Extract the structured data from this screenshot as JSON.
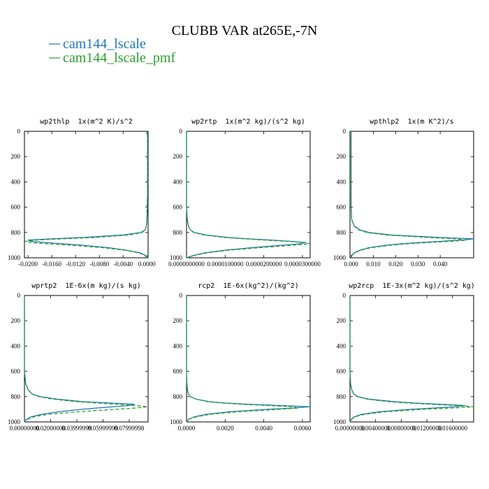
{
  "title": "CLUBB VAR at265E,-7N",
  "chart_data": [
    {
      "type": "line",
      "orientation": "vertical",
      "title": "wp2thlp  1x(m^2 K)/s^2",
      "y": [
        0,
        100,
        200,
        300,
        400,
        500,
        600,
        700,
        750,
        780,
        800,
        820,
        840,
        850,
        860,
        870,
        880,
        890,
        900,
        920,
        940,
        960,
        980,
        1000
      ],
      "ylim": [
        1000,
        0
      ],
      "yticks": [
        0,
        200,
        400,
        600,
        800,
        1000
      ],
      "xlim": [
        -0.0206,
        0.0002
      ],
      "xticks": [
        {
          "value": -0.02,
          "label": "-0.0200"
        },
        {
          "value": -0.016,
          "label": "-0.0160"
        },
        {
          "value": -0.012,
          "label": "-0.0120"
        },
        {
          "value": -0.008,
          "label": "-0.0080"
        },
        {
          "value": -0.004,
          "label": "-0.0040"
        },
        {
          "value": 0,
          "label": "0.0000"
        }
      ],
      "series": [
        {
          "name": "cam144_lscale",
          "color": "#1f77b4",
          "linestyle": "solid",
          "values": [
            0.0001,
            0.0001,
            0.0001,
            0.0001,
            0.0001,
            0.0001,
            0.0001,
            0.0,
            -0.0001,
            -0.0003,
            -0.001,
            -0.004,
            -0.011,
            -0.016,
            -0.02,
            -0.0195,
            -0.017,
            -0.014,
            -0.011,
            -0.0065,
            -0.0035,
            -0.0012,
            -0.0003,
            0.0
          ]
        },
        {
          "name": "cam144_lscale_pmf",
          "color": "#2ca02c",
          "linestyle": "dashed",
          "values": [
            0.0001,
            0.0001,
            0.0001,
            0.0001,
            0.0001,
            0.0001,
            0.0,
            0.0,
            -0.0001,
            -0.0003,
            -0.0008,
            -0.003,
            -0.009,
            -0.014,
            -0.0185,
            -0.0205,
            -0.0195,
            -0.0165,
            -0.013,
            -0.0075,
            -0.0038,
            -0.0014,
            -0.0004,
            0.0
          ]
        }
      ]
    },
    {
      "type": "line",
      "orientation": "vertical",
      "title": "wp2rtp  1x(m^2 kg)/(s^2 kg)",
      "y": [
        0,
        100,
        200,
        300,
        400,
        500,
        600,
        700,
        750,
        780,
        800,
        820,
        840,
        850,
        860,
        870,
        880,
        890,
        900,
        920,
        940,
        960,
        980,
        1000
      ],
      "ylim": [
        1000,
        0
      ],
      "yticks": [
        0,
        200,
        400,
        600,
        800,
        1000
      ],
      "xlim": [
        0,
        3.2e-05
      ],
      "xticks": [
        {
          "value": 0,
          "label": "0.0000000000"
        },
        {
          "value": 1e-05,
          "label": "0.0000100000"
        },
        {
          "value": 2e-05,
          "label": "0.0000200000"
        },
        {
          "value": 3e-05,
          "label": "0.0000300000"
        }
      ],
      "series": [
        {
          "name": "cam144_lscale",
          "color": "#1f77b4",
          "linestyle": "solid",
          "values": [
            0,
            0,
            0,
            0,
            0,
            0,
            0,
            2e-07,
            5e-07,
            1e-06,
            2e-06,
            5e-06,
            1.1e-05,
            1.6e-05,
            2.2e-05,
            2.7e-05,
            3.1e-05,
            2.9e-05,
            2.5e-05,
            1.7e-05,
            1e-05,
            5e-06,
            2e-06,
            0
          ]
        },
        {
          "name": "cam144_lscale_pmf",
          "color": "#2ca02c",
          "linestyle": "dashed",
          "values": [
            0,
            0,
            0,
            0,
            0,
            0,
            0,
            2e-07,
            5e-07,
            1e-06,
            1.8e-06,
            4.5e-06,
            1e-05,
            1.5e-05,
            2e-05,
            2.6e-05,
            3.1e-05,
            3.2e-05,
            2.8e-05,
            1.9e-05,
            1.1e-05,
            5.5e-06,
            2.2e-06,
            0
          ]
        }
      ]
    },
    {
      "type": "line",
      "orientation": "vertical",
      "title": "wpthlp2  1x(m K^2)/s",
      "y": [
        0,
        100,
        200,
        300,
        400,
        500,
        600,
        700,
        750,
        780,
        800,
        820,
        840,
        850,
        860,
        870,
        880,
        890,
        900,
        920,
        940,
        960,
        980,
        1000
      ],
      "ylim": [
        1000,
        0
      ],
      "yticks": [
        0,
        200,
        400,
        600,
        800,
        1000
      ],
      "xlim": [
        -0.0005,
        0.055
      ],
      "xticks": [
        {
          "value": 0,
          "label": "0.000"
        },
        {
          "value": 0.01,
          "label": "0.010"
        },
        {
          "value": 0.02,
          "label": "0.020"
        },
        {
          "value": 0.03,
          "label": "0.030"
        },
        {
          "value": 0.04,
          "label": "0.040"
        }
      ],
      "series": [
        {
          "name": "cam144_lscale",
          "color": "#1f77b4",
          "linestyle": "solid",
          "values": [
            0,
            0,
            0,
            0,
            0,
            0,
            0,
            0.0003,
            0.0015,
            0.004,
            0.008,
            0.018,
            0.04,
            0.055,
            0.05,
            0.04,
            0.03,
            0.022,
            0.016,
            0.008,
            0.004,
            0.0015,
            0.0004,
            0
          ]
        },
        {
          "name": "cam144_lscale_pmf",
          "color": "#2ca02c",
          "linestyle": "dashed",
          "values": [
            0,
            0,
            0,
            0,
            0,
            0,
            0,
            0.0003,
            0.0014,
            0.0035,
            0.007,
            0.016,
            0.035,
            0.047,
            0.052,
            0.045,
            0.034,
            0.025,
            0.018,
            0.009,
            0.0045,
            0.0017,
            0.0005,
            0
          ]
        }
      ]
    },
    {
      "type": "line",
      "orientation": "vertical",
      "title": "wprtp2  1E-6x(m kg)/(s kg)",
      "y": [
        0,
        100,
        200,
        300,
        400,
        500,
        600,
        700,
        750,
        780,
        800,
        820,
        840,
        850,
        860,
        870,
        880,
        890,
        900,
        920,
        940,
        960,
        980,
        1000
      ],
      "ylim": [
        1000,
        0
      ],
      "yticks": [
        0,
        200,
        400,
        600,
        800,
        1000
      ],
      "xlim": [
        0,
        0.0944
      ],
      "xticks": [
        {
          "value": 0,
          "label": "0.00000000"
        },
        {
          "value": 0.02,
          "label": "0.02000000"
        },
        {
          "value": 0.04,
          "label": "0.03999999"
        },
        {
          "value": 0.06,
          "label": "0.05999999"
        },
        {
          "value": 0.08,
          "label": "0.07999998"
        }
      ],
      "series": [
        {
          "name": "cam144_lscale",
          "color": "#1f77b4",
          "linestyle": "solid",
          "values": [
            0,
            0,
            0,
            0,
            0,
            0,
            0,
            0.001,
            0.003,
            0.006,
            0.012,
            0.025,
            0.045,
            0.065,
            0.084,
            0.08,
            0.068,
            0.055,
            0.044,
            0.026,
            0.013,
            0.005,
            0.0015,
            0
          ]
        },
        {
          "name": "cam144_lscale_pmf",
          "color": "#2ca02c",
          "linestyle": "dashed",
          "values": [
            0,
            0,
            0,
            0,
            0,
            0,
            0,
            0.001,
            0.003,
            0.006,
            0.011,
            0.022,
            0.04,
            0.055,
            0.07,
            0.085,
            0.094,
            0.085,
            0.07,
            0.04,
            0.018,
            0.007,
            0.002,
            0
          ]
        }
      ]
    },
    {
      "type": "line",
      "orientation": "vertical",
      "title": "rcp2  1E-6x(kg^2)/(kg^2)",
      "y": [
        0,
        100,
        200,
        300,
        400,
        500,
        600,
        700,
        750,
        780,
        800,
        820,
        840,
        850,
        860,
        870,
        880,
        890,
        900,
        920,
        940,
        960,
        980,
        1000
      ],
      "ylim": [
        1000,
        0
      ],
      "yticks": [
        0,
        200,
        400,
        600,
        800,
        1000
      ],
      "xlim": [
        0,
        0.0064
      ],
      "xticks": [
        {
          "value": 0,
          "label": "0.0000"
        },
        {
          "value": 0.002,
          "label": "0.0020"
        },
        {
          "value": 0.004,
          "label": "0.0040"
        },
        {
          "value": 0.006,
          "label": "0.0060"
        }
      ],
      "series": [
        {
          "name": "cam144_lscale",
          "color": "#1f77b4",
          "linestyle": "solid",
          "values": [
            0,
            0,
            0,
            0,
            0,
            0,
            0,
            2e-05,
            5e-05,
            0.0001,
            0.0002,
            0.0005,
            0.0012,
            0.002,
            0.0032,
            0.0048,
            0.0064,
            0.0055,
            0.0042,
            0.0022,
            0.001,
            0.0004,
            0.0001,
            0
          ]
        },
        {
          "name": "cam144_lscale_pmf",
          "color": "#2ca02c",
          "linestyle": "dashed",
          "values": [
            0,
            0,
            0,
            0,
            0,
            0,
            0,
            2e-05,
            5e-05,
            0.0001,
            0.0002,
            0.0005,
            0.0011,
            0.0018,
            0.0028,
            0.0042,
            0.0055,
            0.0058,
            0.0048,
            0.0026,
            0.0012,
            0.0005,
            0.0001,
            0
          ]
        }
      ]
    },
    {
      "type": "line",
      "orientation": "vertical",
      "title": "wp2rcp  1E-3x(m^2 kg)/(s^2 kg)",
      "y": [
        0,
        100,
        200,
        300,
        400,
        500,
        600,
        700,
        750,
        780,
        800,
        820,
        840,
        850,
        860,
        870,
        880,
        890,
        900,
        920,
        940,
        960,
        980,
        1000
      ],
      "ylim": [
        1000,
        0
      ],
      "yticks": [
        0,
        200,
        400,
        600,
        800,
        1000
      ],
      "xlim": [
        0,
        0.0193
      ],
      "xticks": [
        {
          "value": 0,
          "label": "0.00000000"
        },
        {
          "value": 0.004,
          "label": "0.00400000"
        },
        {
          "value": 0.008,
          "label": "0.00800000"
        },
        {
          "value": 0.012,
          "label": "0.01200000"
        },
        {
          "value": 0.016,
          "label": "0.01600000"
        }
      ],
      "series": [
        {
          "name": "cam144_lscale",
          "color": "#1f77b4",
          "linestyle": "solid",
          "values": [
            0,
            0,
            0,
            0,
            0,
            0,
            0,
            0.0001,
            0.0003,
            0.0006,
            0.0012,
            0.003,
            0.007,
            0.01,
            0.014,
            0.018,
            0.0165,
            0.013,
            0.0095,
            0.0045,
            0.0018,
            0.0006,
            0.0002,
            0
          ]
        },
        {
          "name": "cam144_lscale_pmf",
          "color": "#2ca02c",
          "linestyle": "dashed",
          "values": [
            0,
            0,
            0,
            0,
            0,
            0,
            0,
            0.0001,
            0.0003,
            0.0006,
            0.0011,
            0.0027,
            0.006,
            0.009,
            0.0125,
            0.0165,
            0.0193,
            0.016,
            0.0115,
            0.0055,
            0.0022,
            0.0008,
            0.0002,
            0
          ]
        }
      ]
    }
  ]
}
